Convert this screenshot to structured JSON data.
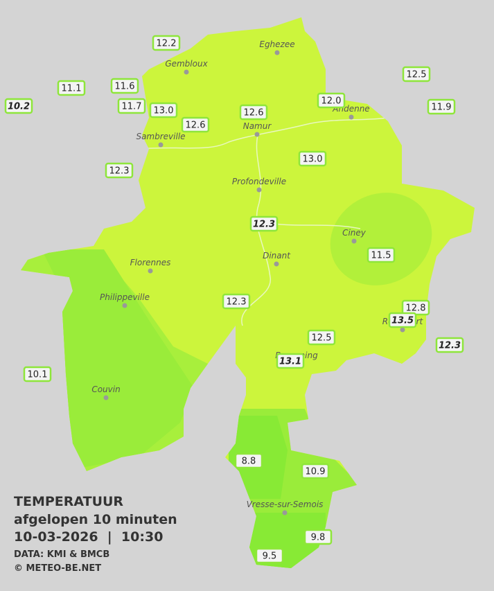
{
  "legend": {
    "title": "TEMPERATUUR",
    "subtitle": "afgelopen 10 minuten",
    "datetime": "10-03-2026  |  10:30",
    "source": "DATA: KMI & BMCB",
    "copyright": "© METEO-BE.NET"
  },
  "cities": [
    "Eghezee",
    "Gembloux",
    "Andenne",
    "Namur",
    "Sambreville",
    "Profondeville",
    "Ciney",
    "Florennes",
    "Dinant",
    "Philippeville",
    "Rochefort",
    "Beauraing",
    "Couvin",
    "Vresse-sur-Semois"
  ],
  "stations": [
    "12.2",
    "11.1",
    "11.6",
    "11.7",
    "13.0",
    "12.6",
    "10.2",
    "12.6",
    "12.0",
    "12.5",
    "11.9",
    "12.3",
    "13.0",
    "12.3",
    "11.5",
    "12.3",
    "12.8",
    "13.5",
    "12.5",
    "13.1",
    "12.3",
    "10.1",
    "8.8",
    "10.9",
    "9.8",
    "9.5"
  ]
}
